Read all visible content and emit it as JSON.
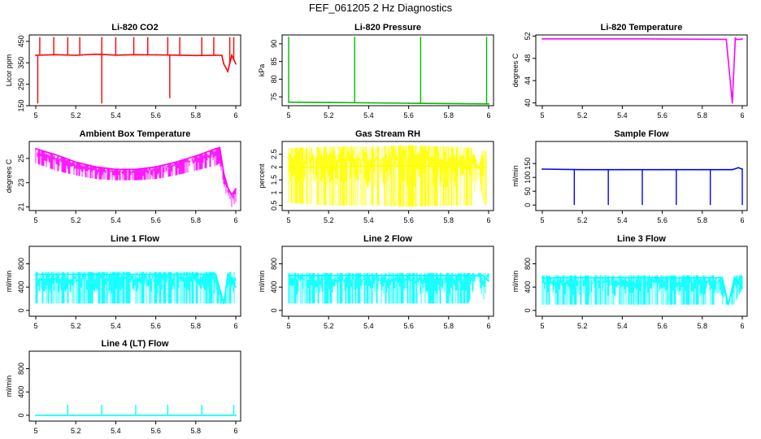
{
  "page": {
    "title": "FEF_061205  2 Hz Diagnostics"
  },
  "chart_data": [
    {
      "type": "line",
      "title": "Li-820 CO2",
      "xlabel": "",
      "ylabel": "Licor ppm",
      "color": "#ff0000",
      "xlim": [
        5.0,
        6.0
      ],
      "ylim": [
        150,
        480
      ],
      "xticks": [
        5.0,
        5.2,
        5.4,
        5.6,
        5.8,
        6.0
      ],
      "yticks": [
        150,
        250,
        350,
        450
      ],
      "x": [
        5.0,
        5.1,
        5.2,
        5.3,
        5.4,
        5.5,
        5.6,
        5.7,
        5.8,
        5.9,
        5.93,
        5.94,
        5.96,
        5.98,
        6.0
      ],
      "y": [
        385,
        388,
        385,
        390,
        386,
        388,
        387,
        386,
        384,
        385,
        385,
        345,
        310,
        385,
        345
      ],
      "spikes_up": [
        5.02,
        5.09,
        5.16,
        5.22,
        5.33,
        5.4,
        5.49,
        5.56,
        5.66,
        5.72,
        5.83,
        5.89,
        5.97,
        5.99
      ],
      "spikes_up_max": 470,
      "spikes_down": [
        5.01,
        5.33,
        5.67
      ],
      "spikes_down_min": [
        160,
        160,
        185
      ]
    },
    {
      "type": "line",
      "title": "Li-820 Pressure",
      "xlabel": "",
      "ylabel": "kPa",
      "color": "#00bb00",
      "xlim": [
        5.0,
        6.0
      ],
      "ylim": [
        72.5,
        92.5
      ],
      "xticks": [
        5.0,
        5.2,
        5.4,
        5.6,
        5.8,
        6.0
      ],
      "yticks": [
        75,
        80,
        85,
        90
      ],
      "x": [
        5.0,
        5.2,
        5.4,
        5.6,
        5.8,
        6.0
      ],
      "y": [
        73.5,
        73.4,
        73.3,
        73.2,
        73.1,
        73.0
      ],
      "spikes_up": [
        5.0,
        5.33,
        5.66,
        5.99
      ],
      "spikes_up_max": 92,
      "spikes_down": [],
      "spikes_down_min": []
    },
    {
      "type": "line",
      "title": "Li-820 Temperature",
      "xlabel": "",
      "ylabel": "degrees C",
      "color": "#ff00ff",
      "xlim": [
        5.0,
        6.0
      ],
      "ylim": [
        39.5,
        52.2
      ],
      "xticks": [
        5.0,
        5.2,
        5.4,
        5.6,
        5.8,
        6.0
      ],
      "yticks": [
        40,
        44,
        48,
        52
      ],
      "x": [
        5.0,
        5.5,
        5.92,
        5.95,
        5.965,
        5.97,
        5.99,
        6.0
      ],
      "y": [
        51.5,
        51.5,
        51.4,
        40,
        51.6,
        51.4,
        51.4,
        51.5
      ],
      "spikes_up": [],
      "spikes_up_max": 0,
      "spikes_down": [],
      "spikes_down_min": []
    },
    {
      "type": "line",
      "title": "Ambient Box Temperature",
      "xlabel": "",
      "ylabel": "degrees C",
      "color": "#ff00ff",
      "xlim": [
        5.0,
        6.0
      ],
      "ylim": [
        20.7,
        26.4
      ],
      "xticks": [
        5.0,
        5.2,
        5.4,
        5.6,
        5.8,
        6.0
      ],
      "yticks": [
        21,
        23,
        25
      ],
      "x": [
        5.0,
        5.1,
        5.2,
        5.3,
        5.4,
        5.5,
        5.6,
        5.7,
        5.8,
        5.9,
        5.92,
        5.94,
        5.96,
        5.98,
        6.0
      ],
      "y": [
        25.8,
        25.3,
        24.7,
        24.3,
        24.1,
        24.1,
        24.3,
        24.7,
        25.2,
        25.8,
        25.9,
        23.8,
        22.6,
        22.0,
        22.5
      ],
      "band_low": [
        24.6,
        24.0,
        23.6,
        23.3,
        23.2,
        23.2,
        23.3,
        23.6,
        24.0,
        24.4,
        24.6,
        22.8,
        21.6,
        21.0,
        21.4
      ],
      "spikes_up": [],
      "spikes_up_max": 0,
      "spikes_down": [],
      "spikes_down_min": []
    },
    {
      "type": "line",
      "title": "Gas Stream RH",
      "xlabel": "",
      "ylabel": "percent",
      "color": "#ffff00",
      "xlim": [
        5.0,
        6.0
      ],
      "ylim": [
        0.3,
        3.0
      ],
      "xticks": [
        5.0,
        5.2,
        5.4,
        5.6,
        5.8,
        6.0
      ],
      "yticks": [
        0.5,
        1.0,
        1.5,
        2.0,
        2.5
      ],
      "x": [
        5.0,
        5.2,
        5.4,
        5.6,
        5.8,
        5.92,
        5.95,
        5.97,
        5.99
      ],
      "y": [
        2.0,
        2.0,
        2.05,
        2.05,
        2.0,
        2.0,
        2.0,
        2.0,
        2.0
      ],
      "band_high": [
        2.75,
        2.8,
        2.8,
        2.85,
        2.8,
        2.75,
        2.0,
        2.7,
        2.6
      ],
      "band_low": [
        0.6,
        0.5,
        0.5,
        0.45,
        0.5,
        0.5,
        2.0,
        0.6,
        0.5
      ],
      "spikes_up": [],
      "spikes_up_max": 0,
      "spikes_down": [],
      "spikes_down_min": []
    },
    {
      "type": "line",
      "title": "Sample Flow",
      "xlabel": "",
      "ylabel": "ml/min",
      "color": "#0000ff",
      "xlim": [
        5.0,
        6.0
      ],
      "ylim": [
        -20,
        230
      ],
      "xticks": [
        5.0,
        5.2,
        5.4,
        5.6,
        5.8,
        6.0
      ],
      "yticks": [
        0,
        50,
        100,
        150
      ],
      "x": [
        5.0,
        5.2,
        5.4,
        5.6,
        5.8,
        5.95,
        5.98,
        6.0
      ],
      "y": [
        130,
        128,
        128,
        128,
        128,
        128,
        135,
        130
      ],
      "spikes_up": [],
      "spikes_up_max": 0,
      "spikes_down": [
        5.16,
        5.33,
        5.5,
        5.67,
        5.84,
        6.0
      ],
      "spikes_down_min": [
        0,
        0,
        0,
        0,
        0,
        0
      ]
    },
    {
      "type": "line",
      "title": "Line 1 Flow",
      "xlabel": "",
      "ylabel": "ml/min",
      "color": "#00ffff",
      "xlim": [
        5.0,
        6.0
      ],
      "ylim": [
        -100,
        1100
      ],
      "xticks": [
        5.0,
        5.2,
        5.4,
        5.6,
        5.8,
        6.0
      ],
      "yticks": [
        0,
        400,
        800
      ],
      "x": [
        5.0,
        5.9,
        5.94,
        5.96,
        6.0
      ],
      "y": [
        620,
        620,
        120,
        620,
        400
      ],
      "band_high": [
        660,
        660,
        120,
        660,
        660
      ],
      "band_low": [
        120,
        120,
        120,
        120,
        120
      ],
      "spikes_up": [],
      "spikes_up_max": 0,
      "spikes_down": [],
      "spikes_down_min": []
    },
    {
      "type": "line",
      "title": "Line 2 Flow",
      "xlabel": "",
      "ylabel": "ml/min",
      "color": "#00ffff",
      "xlim": [
        5.0,
        6.0
      ],
      "ylim": [
        -100,
        1100
      ],
      "xticks": [
        5.0,
        5.2,
        5.4,
        5.6,
        5.8,
        6.0
      ],
      "yticks": [
        0,
        400,
        800
      ],
      "x": [
        5.0,
        5.9,
        5.95,
        5.97,
        6.0
      ],
      "y": [
        600,
        600,
        600,
        600,
        500
      ],
      "band_high": [
        640,
        640,
        640,
        640,
        640
      ],
      "band_low": [
        120,
        120,
        600,
        120,
        500
      ],
      "spikes_up": [],
      "spikes_up_max": 0,
      "spikes_down": [],
      "spikes_down_min": []
    },
    {
      "type": "line",
      "title": "Line 3 Flow",
      "xlabel": "",
      "ylabel": "ml/min",
      "color": "#00ffff",
      "xlim": [
        5.0,
        6.0
      ],
      "ylim": [
        -100,
        1100
      ],
      "xticks": [
        5.0,
        5.2,
        5.4,
        5.6,
        5.8,
        6.0
      ],
      "yticks": [
        0,
        400,
        800
      ],
      "x": [
        5.0,
        5.9,
        5.93,
        5.96,
        6.0
      ],
      "y": [
        560,
        560,
        100,
        560,
        380
      ],
      "band_high": [
        600,
        600,
        100,
        600,
        600
      ],
      "band_low": [
        100,
        100,
        100,
        100,
        380
      ],
      "spikes_up": [],
      "spikes_up_max": 0,
      "spikes_down": [],
      "spikes_down_min": []
    },
    {
      "type": "line",
      "title": "Line 4 (LT) Flow",
      "xlabel": "",
      "ylabel": "ml/min",
      "color": "#00ffff",
      "xlim": [
        5.0,
        6.0
      ],
      "ylim": [
        -100,
        1100
      ],
      "xticks": [
        5.0,
        5.2,
        5.4,
        5.6,
        5.8,
        6.0
      ],
      "yticks": [
        0,
        400,
        800
      ],
      "x": [
        5.0,
        6.0
      ],
      "y": [
        0,
        0
      ],
      "spikes_up": [
        5.16,
        5.33,
        5.5,
        5.66,
        5.83,
        5.99
      ],
      "spikes_up_max": 180,
      "spikes_down": [],
      "spikes_down_min": []
    }
  ]
}
